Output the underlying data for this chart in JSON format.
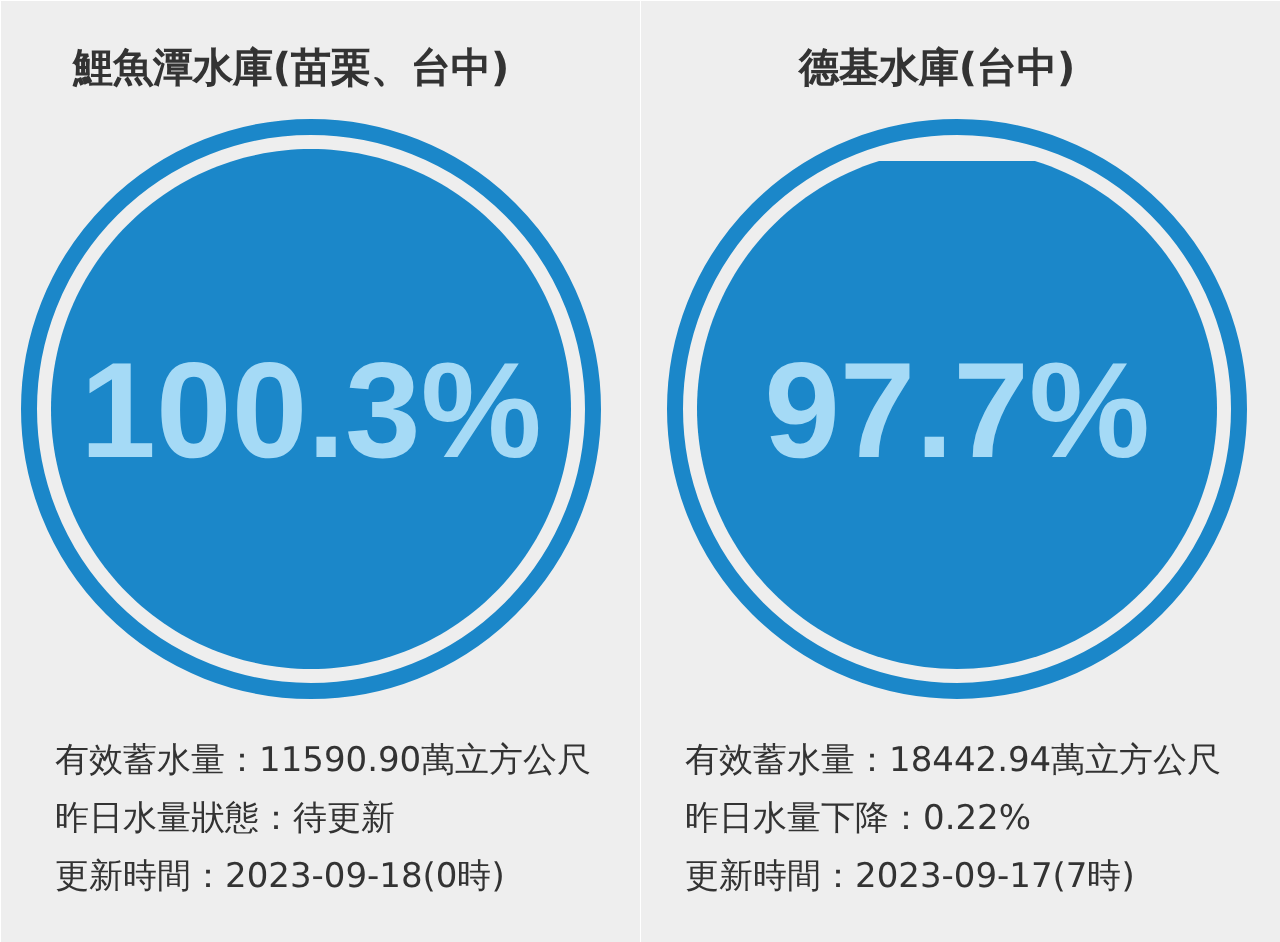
{
  "chart_data": [
    {
      "type": "other",
      "title": "鯉魚潭水庫(苗栗、台中)",
      "values": [
        100.3
      ],
      "value_labels": [
        "100.3%"
      ],
      "color": "#1b87c9",
      "annotations": [
        "有效蓄水量：11590.90萬立方公尺",
        "昨日水量狀態：待更新",
        "更新時間：2023-09-18(0時)"
      ]
    },
    {
      "type": "other",
      "title": "德基水庫(台中)",
      "values": [
        97.7
      ],
      "value_labels": [
        "97.7%"
      ],
      "color": "#1b87c9",
      "annotations": [
        "有效蓄水量：18442.94萬立方公尺",
        "昨日水量下降：0.22%",
        "更新時間：2023-09-17(7時)"
      ]
    }
  ]
}
